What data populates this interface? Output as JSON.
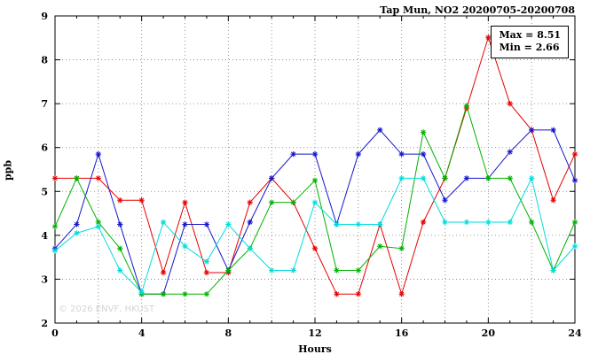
{
  "title": "Tap Mun, NO2 20200705-20200708",
  "annotation": {
    "max_label": "Max = 8.51",
    "min_label": "Min = 2.66"
  },
  "watermark": "© 2026 ENVF, HKUST",
  "chart_data": {
    "type": "line",
    "title": "Tap Mun, NO2 20200705-20200708",
    "xlabel": "Hours",
    "ylabel": "ppb",
    "xlim": [
      0,
      24
    ],
    "ylim": [
      2,
      9
    ],
    "xticks": [
      0,
      4,
      8,
      12,
      16,
      20,
      24
    ],
    "yticks": [
      2,
      3,
      4,
      5,
      6,
      7,
      8,
      9
    ],
    "minor_xtick_step": 1,
    "xgrid_step": 2,
    "grid": true,
    "grid_style": "dotted",
    "legend_position": "none",
    "marker": "asterisk",
    "max_value": 8.51,
    "min_value": 2.66,
    "x": [
      0,
      1,
      2,
      3,
      4,
      5,
      6,
      7,
      8,
      9,
      10,
      11,
      12,
      13,
      14,
      15,
      16,
      17,
      18,
      19,
      20,
      21,
      22,
      23,
      24
    ],
    "series": [
      {
        "name": "red",
        "color": "#e60000",
        "values": [
          5.3,
          5.3,
          5.3,
          4.8,
          4.8,
          3.15,
          4.75,
          3.15,
          3.15,
          4.75,
          5.3,
          4.75,
          3.7,
          2.66,
          2.66,
          4.25,
          2.66,
          4.3,
          5.3,
          6.9,
          8.51,
          7.0,
          6.4,
          4.8,
          5.85
        ]
      },
      {
        "name": "blue",
        "color": "#1414cc",
        "values": [
          3.7,
          4.25,
          5.85,
          4.25,
          2.66,
          2.66,
          4.25,
          4.25,
          3.2,
          4.3,
          5.3,
          5.85,
          5.85,
          4.25,
          5.85,
          6.4,
          5.85,
          5.85,
          4.8,
          5.3,
          5.3,
          5.9,
          6.4,
          6.4,
          5.25
        ]
      },
      {
        "name": "green",
        "color": "#00b200",
        "values": [
          4.2,
          5.3,
          4.3,
          3.7,
          2.66,
          2.66,
          2.66,
          2.66,
          3.2,
          3.7,
          4.75,
          4.75,
          5.25,
          3.2,
          3.2,
          3.75,
          3.7,
          6.35,
          5.3,
          6.95,
          5.3,
          5.3,
          4.3,
          3.2,
          4.3
        ]
      },
      {
        "name": "cyan",
        "color": "#00dcdc",
        "values": [
          3.65,
          4.05,
          4.2,
          3.2,
          2.7,
          4.3,
          3.75,
          3.4,
          4.25,
          3.7,
          3.2,
          3.2,
          4.75,
          4.25,
          4.25,
          4.25,
          5.3,
          5.3,
          4.3,
          4.3,
          4.3,
          4.3,
          5.3,
          3.2,
          3.75
        ]
      }
    ]
  }
}
